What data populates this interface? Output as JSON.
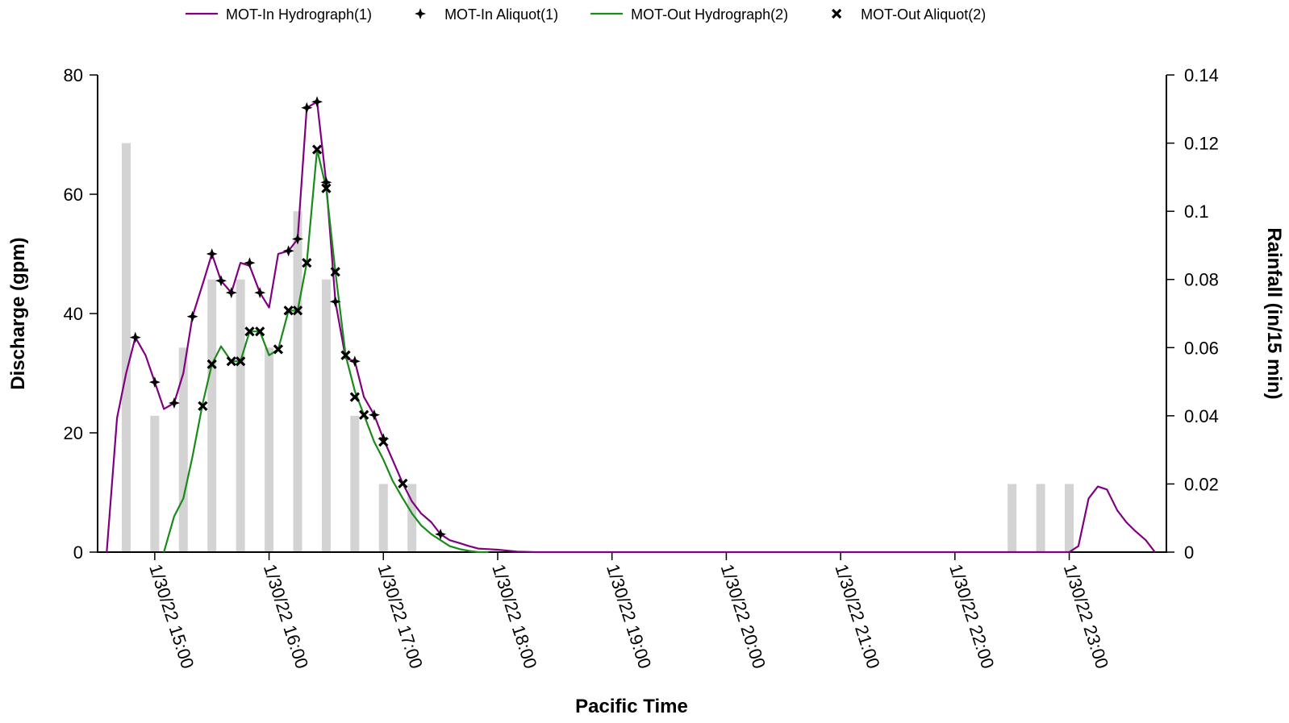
{
  "chart_data": {
    "type": "line",
    "xlabel": "Pacific Time",
    "ylabel": "Discharge (gpm)",
    "y2label": "Rainfall (in/15 min)",
    "ylim": [
      0,
      80
    ],
    "y2lim": [
      0,
      0.14
    ],
    "x_unit": "hours (1/30/22, 24h clock)",
    "xlim": [
      14.5,
      23.85
    ],
    "x_ticks": [
      {
        "x": 15,
        "label": "1/30/22 15:00"
      },
      {
        "x": 16,
        "label": "1/30/22 16:00"
      },
      {
        "x": 17,
        "label": "1/30/22 17:00"
      },
      {
        "x": 18,
        "label": "1/30/22 18:00"
      },
      {
        "x": 19,
        "label": "1/30/22 19:00"
      },
      {
        "x": 20,
        "label": "1/30/22 20:00"
      },
      {
        "x": 21,
        "label": "1/30/22 21:00"
      },
      {
        "x": 22,
        "label": "1/30/22 22:00"
      },
      {
        "x": 23,
        "label": "1/30/22 23:00"
      }
    ],
    "y_ticks": [
      0,
      20,
      40,
      60,
      80
    ],
    "y2_ticks": [
      {
        "v": 0,
        "label": "0"
      },
      {
        "v": 0.02,
        "label": "0.02"
      },
      {
        "v": 0.04,
        "label": "0.04"
      },
      {
        "v": 0.06,
        "label": "0.06"
      },
      {
        "v": 0.08,
        "label": "0.08"
      },
      {
        "v": 0.1,
        "label": "0.1"
      },
      {
        "v": 0.12,
        "label": "0.12"
      },
      {
        "v": 0.14,
        "label": "0.14"
      }
    ],
    "grid": false,
    "legend_position": "top",
    "series": [
      {
        "name": "MOT-In Hydrograph(1)",
        "kind": "line",
        "axis": "left",
        "color": "#800080",
        "x": [
          14.58,
          14.67,
          14.75,
          14.83,
          14.92,
          15.0,
          15.08,
          15.17,
          15.25,
          15.33,
          15.42,
          15.5,
          15.58,
          15.67,
          15.75,
          15.83,
          15.92,
          16.0,
          16.08,
          16.17,
          16.25,
          16.33,
          16.42,
          16.5,
          16.58,
          16.67,
          16.75,
          16.83,
          16.92,
          17.0,
          17.08,
          17.17,
          17.25,
          17.33,
          17.42,
          17.5,
          17.58,
          17.67,
          17.75,
          17.83,
          17.92,
          18.0,
          18.17,
          18.33,
          18.5,
          18.67,
          18.83,
          19.0,
          20.0,
          21.0,
          22.0,
          22.83,
          22.92,
          23.0,
          23.08,
          23.17,
          23.25,
          23.33,
          23.42,
          23.5,
          23.58,
          23.67,
          23.75
        ],
        "y": [
          0,
          22.5,
          30.0,
          36.0,
          33.0,
          28.5,
          24.0,
          25.0,
          30.0,
          39.5,
          45.0,
          50.0,
          45.5,
          43.5,
          48.5,
          48.0,
          43.5,
          41.0,
          50.0,
          50.5,
          52.5,
          74.5,
          75.5,
          62.0,
          42.0,
          32.5,
          32.0,
          26.0,
          23.0,
          19.0,
          15.5,
          11.5,
          8.5,
          6.5,
          5.0,
          3.0,
          2.0,
          1.5,
          1.0,
          0.6,
          0.5,
          0.4,
          0.1,
          0,
          0,
          0,
          0,
          0,
          0,
          0,
          0,
          0,
          0,
          0,
          1.0,
          9.0,
          11.0,
          10.5,
          7.0,
          5.0,
          3.5,
          2.0,
          0
        ]
      },
      {
        "name": "MOT-In Aliquot(1)",
        "kind": "marker",
        "marker": "star4",
        "axis": "left",
        "color": "#000000",
        "x": [
          14.83,
          15.0,
          15.17,
          15.33,
          15.5,
          15.58,
          15.67,
          15.83,
          15.92,
          16.17,
          16.25,
          16.33,
          16.42,
          16.5,
          16.58,
          16.75,
          16.92,
          17.0,
          17.5
        ],
        "y": [
          36.0,
          28.5,
          25.0,
          39.5,
          50.0,
          45.5,
          43.5,
          48.5,
          43.5,
          50.5,
          52.5,
          74.5,
          75.5,
          62.0,
          42.0,
          32.0,
          23.0,
          19.0,
          3.0
        ]
      },
      {
        "name": "MOT-Out Hydrograph(2)",
        "kind": "line",
        "axis": "left",
        "color": "#1a8a1a",
        "x": [
          15.08,
          15.17,
          15.25,
          15.33,
          15.42,
          15.5,
          15.58,
          15.67,
          15.75,
          15.83,
          15.92,
          16.0,
          16.08,
          16.17,
          16.25,
          16.33,
          16.42,
          16.5,
          16.58,
          16.67,
          16.75,
          16.83,
          16.92,
          17.0,
          17.08,
          17.17,
          17.25,
          17.33,
          17.42,
          17.5,
          17.58,
          17.67,
          17.75,
          17.83,
          17.92
        ],
        "y": [
          0,
          6.0,
          9.0,
          16.0,
          25.0,
          31.5,
          34.5,
          32.0,
          32.0,
          37.0,
          37.0,
          33.0,
          34.0,
          40.5,
          40.5,
          48.5,
          67.5,
          61.0,
          47.0,
          33.0,
          27.0,
          23.0,
          18.5,
          15.5,
          12.0,
          9.0,
          6.5,
          4.5,
          3.0,
          2.0,
          1.0,
          0.5,
          0.2,
          0,
          0
        ]
      },
      {
        "name": "MOT-Out Aliquot(2)",
        "kind": "marker",
        "marker": "x",
        "axis": "left",
        "color": "#000000",
        "x": [
          15.42,
          15.5,
          15.67,
          15.75,
          15.83,
          15.92,
          16.08,
          16.17,
          16.25,
          16.33,
          16.42,
          16.5,
          16.58,
          16.67,
          16.75,
          16.83,
          17.0,
          17.17
        ],
        "y": [
          24.5,
          31.5,
          32.0,
          32.0,
          37.0,
          37.0,
          34.0,
          40.5,
          40.5,
          48.5,
          67.5,
          61.0,
          47.0,
          33.0,
          26.0,
          23.0,
          18.5,
          11.5
        ]
      },
      {
        "kind": "bar",
        "axis": "right",
        "color": "#d3d3d3",
        "x": [
          14.75,
          15.0,
          15.25,
          15.5,
          15.75,
          16.0,
          16.25,
          16.5,
          16.75,
          17.0,
          17.25,
          22.5,
          22.75,
          23.0
        ],
        "y": [
          0.12,
          0.04,
          0.06,
          0.08,
          0.08,
          0.06,
          0.1,
          0.08,
          0.04,
          0.02,
          0.02,
          0.02,
          0.02,
          0.02
        ]
      }
    ]
  }
}
